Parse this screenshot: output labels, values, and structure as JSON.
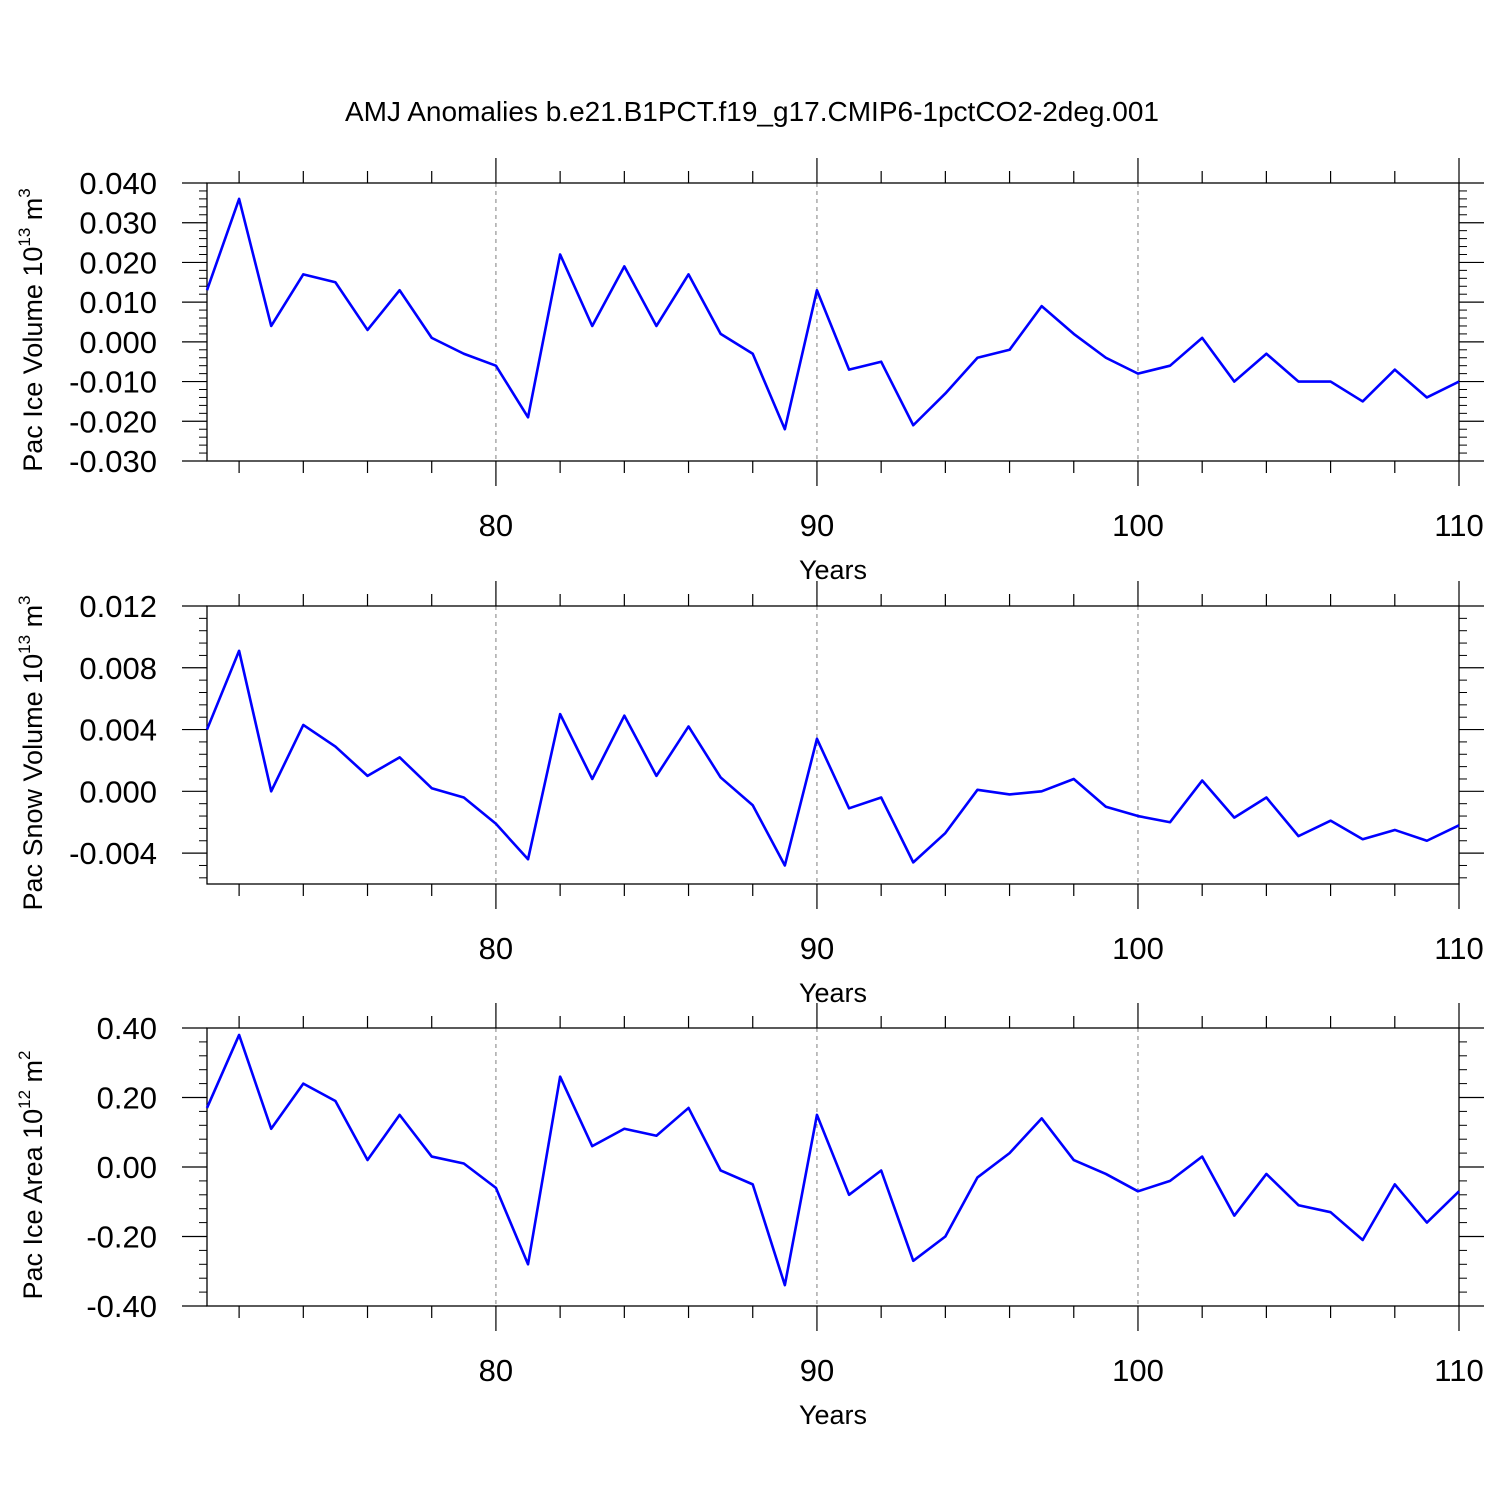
{
  "title": "AMJ Anomalies b.e21.B1PCT.f19_g17.CMIP6-1pctCO2-2deg.001",
  "colors": {
    "line": "#0000ff",
    "axis": "#000000",
    "grid": "#7f7f7f"
  },
  "chart_data": [
    {
      "type": "line",
      "ylabel": "Pac Ice Volume 10",
      "ylabel_exp": "13",
      "ylabel_unit": " m",
      "ylabel_unit_exp": "3",
      "xlabel": "Years",
      "xlim": [
        71,
        110
      ],
      "ylim": [
        -0.03,
        0.04
      ],
      "xticks": [
        80,
        90,
        100,
        110
      ],
      "xtick_labels": [
        "80",
        "90",
        "100",
        "110"
      ],
      "yticks": [
        -0.03,
        -0.02,
        -0.01,
        0.0,
        0.01,
        0.02,
        0.03,
        0.04
      ],
      "ytick_labels": [
        "-0.030",
        "-0.020",
        "-0.010",
        "0.000",
        "0.010",
        "0.020",
        "0.030",
        "0.040"
      ],
      "grid": "vertical dashed at major x ticks",
      "x": [
        71,
        72,
        73,
        74,
        75,
        76,
        77,
        78,
        79,
        80,
        81,
        82,
        83,
        84,
        85,
        86,
        87,
        88,
        89,
        90,
        91,
        92,
        93,
        94,
        95,
        96,
        97,
        98,
        99,
        100,
        101,
        102,
        103,
        104,
        105,
        106,
        107,
        108,
        109,
        110
      ],
      "values": [
        0.013,
        0.036,
        0.004,
        0.017,
        0.015,
        0.003,
        0.013,
        0.001,
        -0.003,
        -0.006,
        -0.019,
        0.022,
        0.004,
        0.019,
        0.004,
        0.017,
        0.002,
        -0.003,
        -0.022,
        0.013,
        -0.007,
        -0.005,
        -0.021,
        -0.013,
        -0.004,
        -0.002,
        0.009,
        0.002,
        -0.004,
        -0.008,
        -0.006,
        0.001,
        -0.01,
        -0.003,
        -0.01,
        -0.01,
        -0.015,
        -0.007,
        -0.014,
        -0.01
      ]
    },
    {
      "type": "line",
      "ylabel": "Pac Snow Volume 10",
      "ylabel_exp": "13",
      "ylabel_unit": " m",
      "ylabel_unit_exp": "3",
      "xlabel": "Years",
      "xlim": [
        71,
        110
      ],
      "ylim": [
        -0.006,
        0.012
      ],
      "xticks": [
        80,
        90,
        100,
        110
      ],
      "xtick_labels": [
        "80",
        "90",
        "100",
        "110"
      ],
      "yticks": [
        -0.004,
        0.0,
        0.004,
        0.008,
        0.012
      ],
      "ytick_labels": [
        "-0.004",
        "0.000",
        "0.004",
        "0.008",
        "0.012"
      ],
      "grid": "vertical dashed at major x ticks",
      "x": [
        71,
        72,
        73,
        74,
        75,
        76,
        77,
        78,
        79,
        80,
        81,
        82,
        83,
        84,
        85,
        86,
        87,
        88,
        89,
        90,
        91,
        92,
        93,
        94,
        95,
        96,
        97,
        98,
        99,
        100,
        101,
        102,
        103,
        104,
        105,
        106,
        107,
        108,
        109,
        110
      ],
      "values": [
        0.004,
        0.0091,
        0.0,
        0.0043,
        0.0029,
        0.001,
        0.0022,
        0.0002,
        -0.0004,
        -0.0021,
        -0.0044,
        0.005,
        0.0008,
        0.0049,
        0.001,
        0.0042,
        0.0009,
        -0.0009,
        -0.0048,
        0.0034,
        -0.0011,
        -0.0004,
        -0.0046,
        -0.0027,
        0.0001,
        -0.0002,
        0.0,
        0.0008,
        -0.001,
        -0.0016,
        -0.002,
        0.0007,
        -0.0017,
        -0.0004,
        -0.0029,
        -0.0019,
        -0.0031,
        -0.0025,
        -0.0032,
        -0.0022
      ]
    },
    {
      "type": "line",
      "ylabel": "Pac Ice Area 10",
      "ylabel_exp": "12",
      "ylabel_unit": " m",
      "ylabel_unit_exp": "2",
      "xlabel": "Years",
      "xlim": [
        71,
        110
      ],
      "ylim": [
        -0.4,
        0.4
      ],
      "xticks": [
        80,
        90,
        100,
        110
      ],
      "xtick_labels": [
        "80",
        "90",
        "100",
        "110"
      ],
      "yticks": [
        -0.4,
        -0.2,
        0.0,
        0.2,
        0.4
      ],
      "ytick_labels": [
        "-0.40",
        "-0.20",
        "0.00",
        "0.20",
        "0.40"
      ],
      "grid": "vertical dashed at major x ticks",
      "x": [
        71,
        72,
        73,
        74,
        75,
        76,
        77,
        78,
        79,
        80,
        81,
        82,
        83,
        84,
        85,
        86,
        87,
        88,
        89,
        90,
        91,
        92,
        93,
        94,
        95,
        96,
        97,
        98,
        99,
        100,
        101,
        102,
        103,
        104,
        105,
        106,
        107,
        108,
        109,
        110
      ],
      "values": [
        0.17,
        0.38,
        0.11,
        0.24,
        0.19,
        0.02,
        0.15,
        0.03,
        0.01,
        -0.06,
        -0.28,
        0.26,
        0.06,
        0.11,
        0.09,
        0.17,
        -0.01,
        -0.05,
        -0.34,
        0.15,
        -0.08,
        -0.01,
        -0.27,
        -0.2,
        -0.03,
        0.04,
        0.14,
        0.02,
        -0.02,
        -0.07,
        -0.04,
        0.03,
        -0.14,
        -0.02,
        -0.11,
        -0.13,
        -0.21,
        -0.05,
        -0.16,
        -0.07
      ]
    }
  ]
}
